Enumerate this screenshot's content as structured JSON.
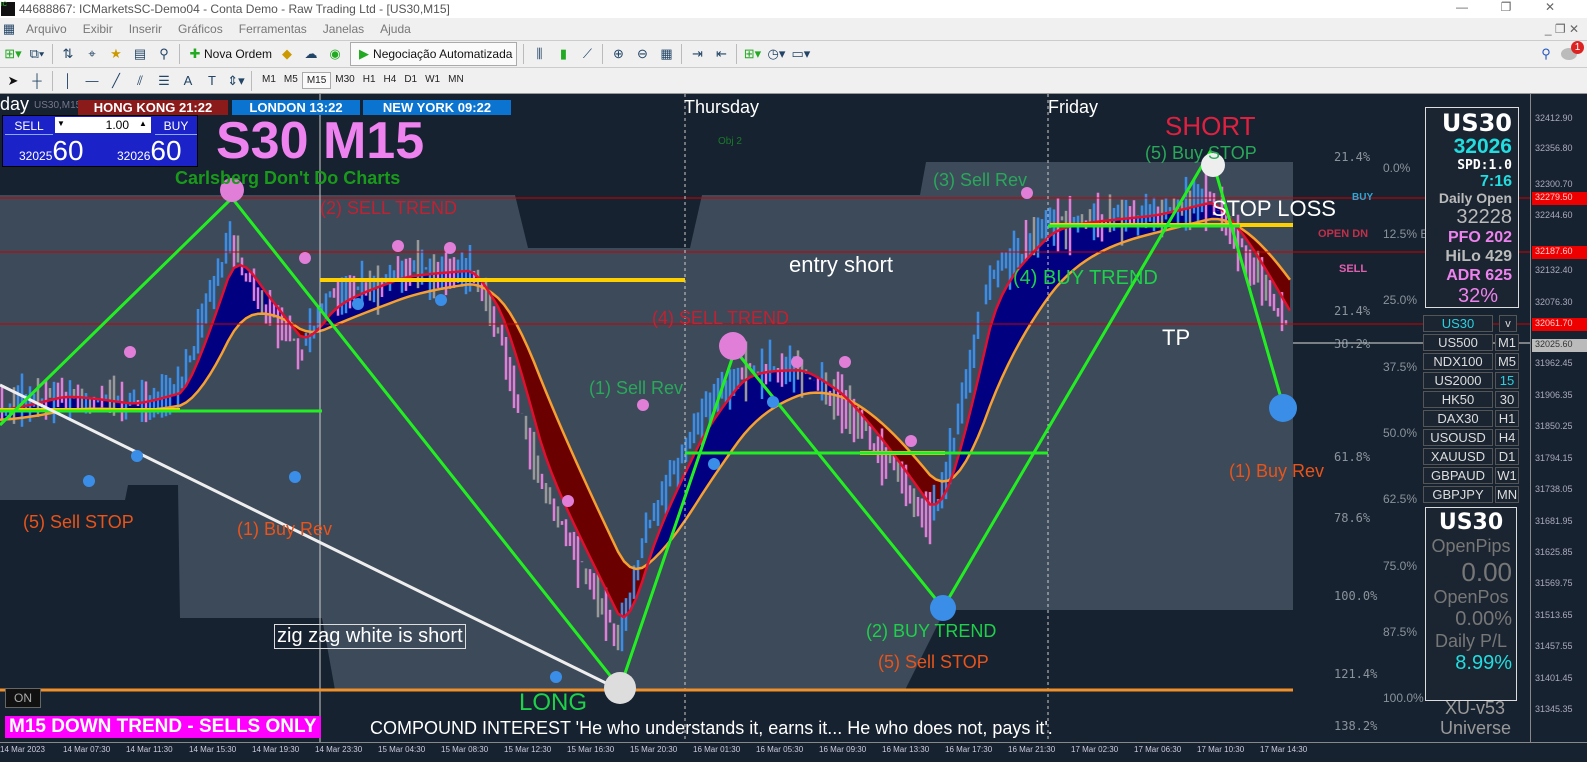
{
  "window": {
    "title": "44688867: ICMarketsSC-Demo04 - Conta Demo - Raw Trading Ltd - [US30,M15]",
    "logo": "IC",
    "min": "—",
    "restore": "❐",
    "close": "✕"
  },
  "menu": [
    "Arquivo",
    "Exibir",
    "Inserir",
    "Gráficos",
    "Ferramentas",
    "Janelas",
    "Ajuda"
  ],
  "toolbar": {
    "new_order": "Nova Ordem",
    "auto_trading": "Negociação Automatizada",
    "notification_count": "1"
  },
  "timeframes": [
    "M1",
    "M5",
    "M15",
    "M30",
    "H1",
    "H4",
    "D1",
    "W1",
    "MN"
  ],
  "active_timeframe": "M15",
  "chart": {
    "symbol_label": "US30,M15",
    "day_partial": "day",
    "big_title": "S30 M15",
    "subtitle": "Carlsberg Don't Do Charts",
    "sessions": [
      {
        "name": "HONG KONG 21:22",
        "color": "#8b1a1a"
      },
      {
        "name": "LONDON  13:22",
        "color": "#0a74d0"
      },
      {
        "name": "NEW YORK  09:22",
        "color": "#0a74d0"
      }
    ],
    "trade_panel": {
      "sell": "SELL",
      "buy": "BUY",
      "lot": "1.00",
      "bid_small": "32025",
      "bid_big": "60",
      "ask_small": "32026",
      "ask_big": "60"
    },
    "days": [
      "Thursday",
      "Friday"
    ],
    "annotations": {
      "short": "SHORT",
      "buy_stop5": "(5) Buy STOP",
      "sell_rev3": "(3) Sell Rev",
      "stop_loss": "STOP LOSS",
      "sell_trend2": "(2) SELL TREND",
      "entry_short": "entry short",
      "buy_trend4": "(4) BUY TREND",
      "sell_trend4": "(4) SELL TREND",
      "tp": "TP",
      "sell_rev1": "(1) Sell Rev",
      "buy_rev1_right": "(1) Buy Rev",
      "sell_stop5_left": "(5) Sell STOP",
      "buy_rev1_left": "(1) Buy Rev",
      "zigzag_note": "zig zag white is short",
      "buy_trend2": "(2) BUY TREND",
      "sell_stop5": "(5) Sell STOP",
      "long": "LONG",
      "obj2": "Obj 2",
      "open_dn": "OPEN DN",
      "buy_tag": "BUY",
      "sell_tag": "SELL",
      "on": "ON"
    },
    "trend_banner": "M15  DOWN TREND - SELLS ONLY",
    "quote": "COMPOUND INTEREST  'He who understands it, earns it... He who does not, pays it'.",
    "fib_left": [
      "21.4%",
      "21.4%",
      "38.2%",
      "61.8%",
      "78.6%",
      "100.0%",
      "121.4%",
      "138.2%"
    ],
    "fib_right": [
      "0.0%",
      "12.5% E",
      "25.0%",
      "37.5%",
      "50.0%",
      "62.5%",
      "75.0%",
      "87.5%",
      "100.0%"
    ]
  },
  "info": {
    "symbol": "US30",
    "price": "32026",
    "spread": "SPD:1.0",
    "timer": "7:16",
    "daily_open_label": "Daily Open",
    "daily_open": "32228",
    "pfo": "PFO 202",
    "hilo": "HiLo 429",
    "adr": "ADR 625",
    "adr_pct": "32%"
  },
  "symbols": {
    "selected": "US30",
    "dropdown": "v",
    "list": [
      "US500",
      "NDX100",
      "US2000",
      "HK50",
      "DAX30",
      "USOUSD",
      "XAUUSD",
      "GBPAUD",
      "GBPJPY"
    ],
    "tfs": [
      "M1",
      "M5",
      "15",
      "30",
      "H1",
      "H4",
      "D1",
      "W1",
      "MN"
    ]
  },
  "account": {
    "symbol": "US30",
    "open_pips_label": "OpenPips",
    "open_pips": "0.00",
    "open_pos_label": "OpenPos",
    "open_pos": "0.00%",
    "daily_pl_label": "Daily P/L",
    "daily_pl": "8.99%",
    "version": "XU-v53",
    "version2": "Universe"
  },
  "price_axis": [
    "32412.90",
    "32356.80",
    "32300.70",
    "32244.60",
    "32132.40",
    "32076.30",
    "31962.45",
    "31906.35",
    "31850.25",
    "31794.15",
    "31738.05",
    "31681.95",
    "31625.85",
    "31569.75",
    "31513.65",
    "31457.55",
    "31401.45",
    "31345.35"
  ],
  "price_tags": [
    {
      "v": "32279.50",
      "c": "#e00"
    },
    {
      "v": "32187.60",
      "c": "#e00"
    },
    {
      "v": "32061.70",
      "c": "#e00"
    },
    {
      "v": "32025.60",
      "c": "#bbb"
    }
  ],
  "time_axis": [
    "14 Mar 2023",
    "14 Mar 07:30",
    "14 Mar 11:30",
    "14 Mar 15:30",
    "14 Mar 19:30",
    "14 Mar 23:30",
    "15 Mar 04:30",
    "15 Mar 08:30",
    "15 Mar 12:30",
    "15 Mar 16:30",
    "15 Mar 20:30",
    "16 Mar 01:30",
    "16 Mar 05:30",
    "16 Mar 09:30",
    "16 Mar 13:30",
    "16 Mar 17:30",
    "16 Mar 21:30",
    "17 Mar 02:30",
    "17 Mar 06:30",
    "17 Mar 10:30",
    "17 Mar 14:30"
  ],
  "colors": {
    "zigzag": "#22ee22",
    "bull_fill": "#000080",
    "bear_fill": "#6b0000",
    "ma_fast": "#e01030",
    "ma_slow": "#f5a030",
    "cloud": "#3c4a5a",
    "level": "#ffd000"
  }
}
